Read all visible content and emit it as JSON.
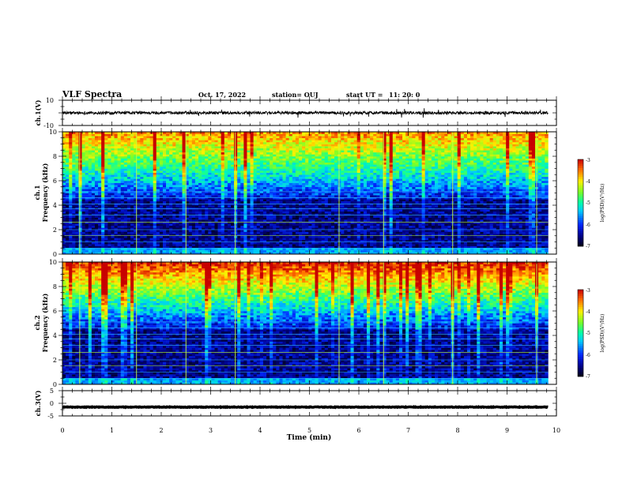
{
  "header": {
    "title": "VLF Spectra",
    "date": "Oct. 17, 2022",
    "station": "station= OUJ",
    "start_label": "start  UT  =",
    "start_time": "11: 20: 0"
  },
  "chart_data": [
    {
      "type": "line",
      "ylabel": "ch.1(V)",
      "ylim": [
        -10,
        10
      ],
      "yticks": [
        "10",
        "-10"
      ],
      "xlim": [
        0,
        10
      ],
      "series": [
        {
          "name": "",
          "baseline": 0,
          "amplitude": 1.5
        }
      ]
    },
    {
      "type": "heatmap",
      "ylabel_top": "ch.1",
      "ylabel": "Frequency (kHz)",
      "ylim": [
        0,
        10
      ],
      "yticks": [
        "0",
        "2",
        "4",
        "6",
        "8",
        "10"
      ],
      "xlim": [
        0,
        10
      ],
      "data_end_min": 9.83,
      "colorbar": {
        "label": "log(PSD)(V²/Hz)",
        "range": [
          -7,
          -3
        ],
        "ticks": [
          "-3",
          "-4",
          "-5",
          "-6",
          "-7"
        ]
      }
    },
    {
      "type": "heatmap",
      "ylabel_top": "ch.2",
      "ylabel": "Frequency (kHz)",
      "ylim": [
        0,
        10
      ],
      "yticks": [
        "0",
        "2",
        "4",
        "6",
        "8",
        "10"
      ],
      "xlim": [
        0,
        10
      ],
      "data_end_min": 9.83,
      "colorbar": {
        "label": "log(PSD)(V²/Hz)",
        "range": [
          -7,
          -3
        ],
        "ticks": [
          "-3",
          "-4",
          "-5",
          "-6",
          "-7"
        ]
      }
    },
    {
      "type": "line",
      "ylabel": "ch.3(V)",
      "ylim": [
        -5,
        5
      ],
      "yticks": [
        "5",
        "0",
        "-5"
      ],
      "xlim": [
        0,
        10
      ],
      "series": [
        {
          "name": "",
          "baseline": -1.5,
          "amplitude": 0.25
        }
      ]
    }
  ],
  "xaxis": {
    "label": "Time (min)",
    "ticks": [
      "0",
      "1",
      "2",
      "3",
      "4",
      "5",
      "6",
      "7",
      "8",
      "9",
      "10"
    ]
  }
}
